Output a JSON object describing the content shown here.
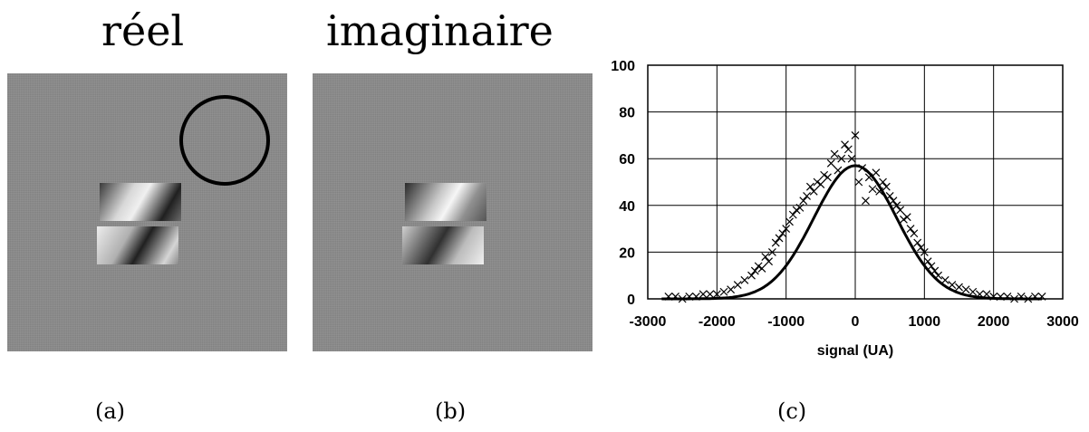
{
  "panels": {
    "a": {
      "title": "réel",
      "caption": "(a)"
    },
    "b": {
      "title": "imaginaire",
      "caption": "(b)"
    },
    "c": {
      "caption": "(c)"
    }
  },
  "chart_data": {
    "type": "scatter",
    "xlabel": "signal (UA)",
    "ylabel": "",
    "xlim": [
      -3000,
      3000
    ],
    "ylim": [
      0,
      100
    ],
    "xticks": [
      -3000,
      -2000,
      -1000,
      0,
      1000,
      2000,
      3000
    ],
    "yticks": [
      0,
      20,
      40,
      60,
      80,
      100
    ],
    "grid": true,
    "series": [
      {
        "kind": "scatter",
        "marker": "x",
        "x": [
          -2700,
          -2600,
          -2500,
          -2400,
          -2300,
          -2200,
          -2100,
          -2000,
          -1900,
          -1800,
          -1700,
          -1600,
          -1500,
          -1450,
          -1400,
          -1350,
          -1300,
          -1250,
          -1200,
          -1150,
          -1100,
          -1050,
          -1000,
          -950,
          -900,
          -850,
          -800,
          -750,
          -700,
          -650,
          -600,
          -550,
          -500,
          -450,
          -400,
          -350,
          -300,
          -250,
          -200,
          -150,
          -100,
          -50,
          0,
          50,
          100,
          150,
          200,
          250,
          300,
          350,
          400,
          450,
          500,
          550,
          600,
          650,
          700,
          750,
          800,
          850,
          900,
          950,
          1000,
          1050,
          1100,
          1150,
          1200,
          1300,
          1400,
          1500,
          1600,
          1700,
          1800,
          1900,
          2000,
          2100,
          2200,
          2300,
          2400,
          2500,
          2600,
          2700
        ],
        "y": [
          1,
          1,
          0,
          1,
          1,
          2,
          2,
          2,
          3,
          4,
          6,
          8,
          10,
          12,
          14,
          13,
          18,
          16,
          20,
          24,
          26,
          28,
          30,
          33,
          36,
          38,
          39,
          42,
          44,
          48,
          46,
          50,
          49,
          53,
          52,
          58,
          62,
          55,
          60,
          66,
          64,
          60,
          70,
          50,
          56,
          42,
          52,
          47,
          54,
          46,
          50,
          48,
          44,
          42,
          40,
          38,
          34,
          35,
          30,
          28,
          24,
          22,
          20,
          16,
          14,
          12,
          10,
          8,
          6,
          5,
          4,
          3,
          2,
          2,
          1,
          1,
          1,
          0,
          1,
          0,
          1,
          1
        ]
      },
      {
        "kind": "fit",
        "mu": 0,
        "sigma": 600,
        "amplitude": 57
      }
    ]
  }
}
